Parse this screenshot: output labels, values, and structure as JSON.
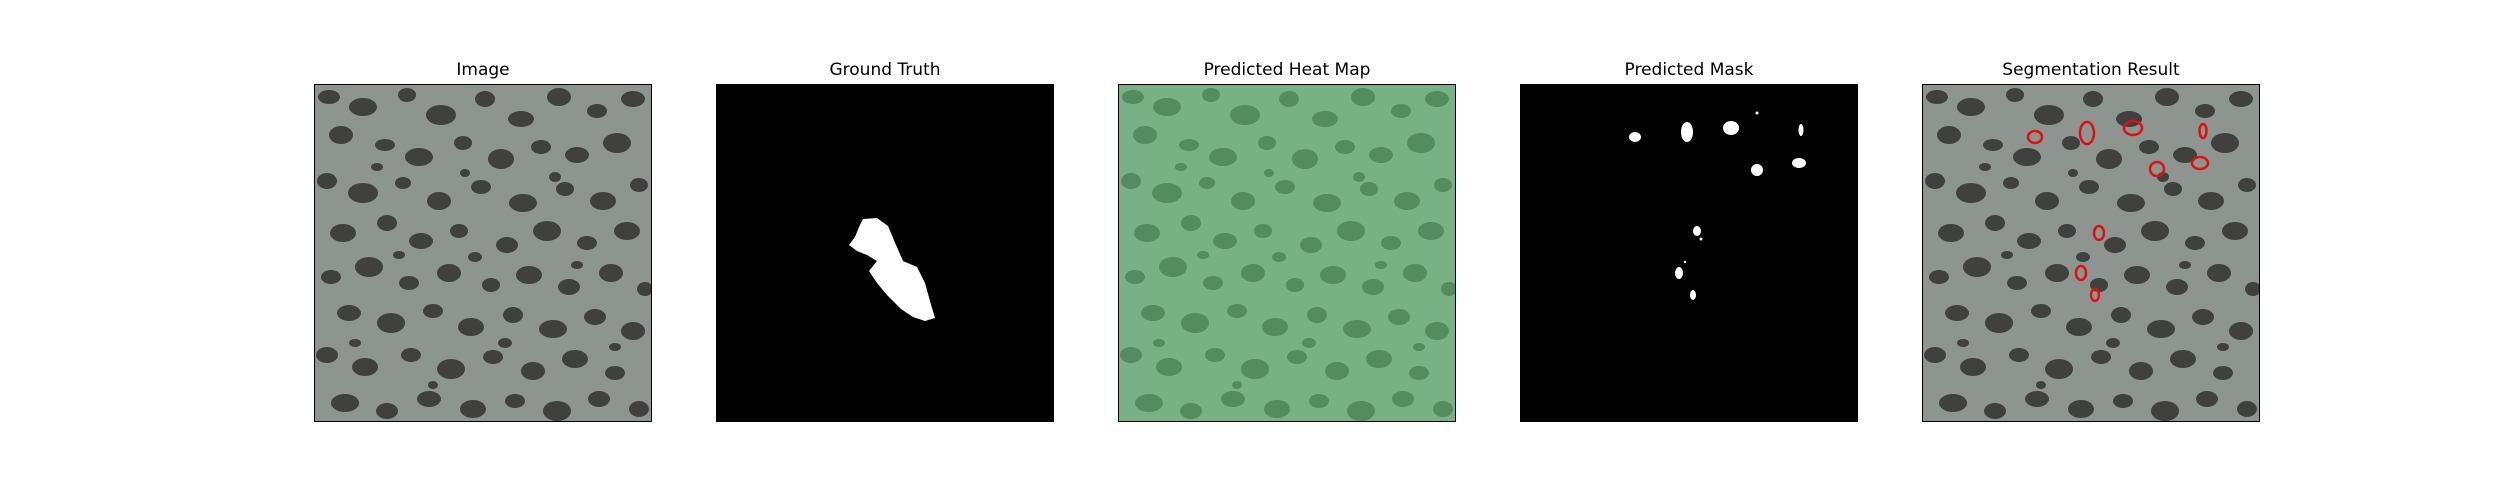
{
  "figure": {
    "panels": [
      {
        "title": "Image"
      },
      {
        "title": "Ground Truth"
      },
      {
        "title": "Predicted Heat Map"
      },
      {
        "title": "Predicted Mask"
      },
      {
        "title": "Segmentation Result"
      }
    ]
  },
  "colors": {
    "background": "#ffffff",
    "texture_base": "#8e9590",
    "texture_dark": "#2e2e2c",
    "heat_overlay": "#64c87a",
    "mask_foreground": "#ffffff",
    "mask_background": "#000000",
    "contour": "#e01010"
  }
}
